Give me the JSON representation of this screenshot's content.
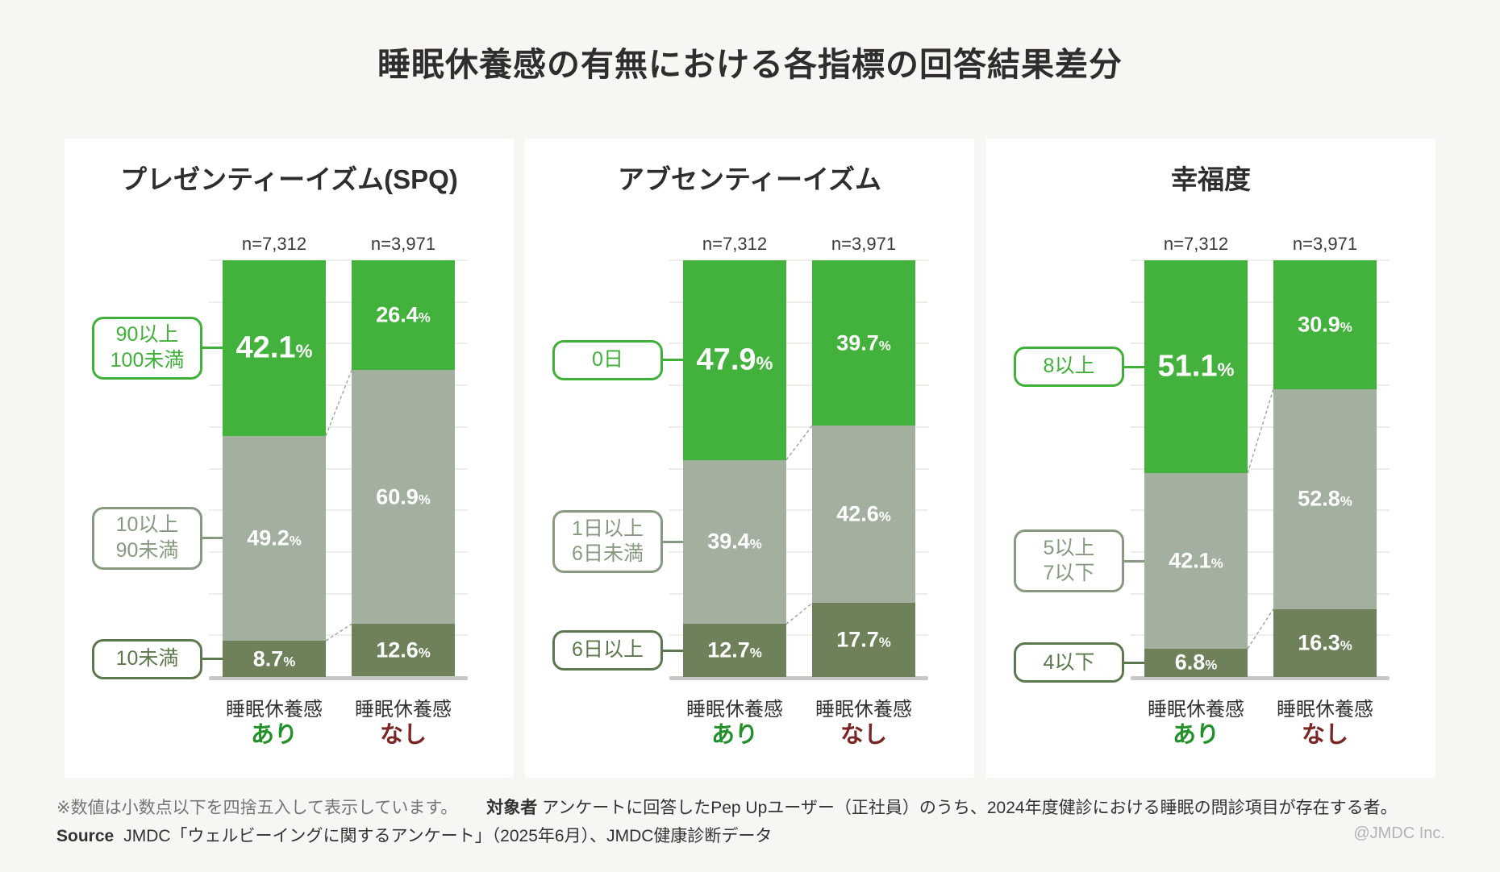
{
  "page": {
    "title": "睡眠休養感の有無における各指標の回答結果差分",
    "note": "※数値は小数点以下を四捨五入して表示しています。",
    "audience_label": "対象者",
    "audience_text": "アンケートに回答したPep Upユーザー（正社員）のうち、2024年度健診における睡眠の問診項目が存在する者。",
    "source_label": "Source",
    "source_text": "JMDC「ウェルビーイングに関するアンケート」（2025年6月）、JMDC健康診断データ",
    "copyright": "@JMDC Inc."
  },
  "colors": {
    "bar_green": "#43b23c",
    "bar_gray": "#a3b0a0",
    "bar_dark": "#6e815a",
    "box_green": "#3fb038",
    "box_gray": "#879980",
    "box_dark": "#5d774e",
    "group_ari": "#22912a",
    "group_nashi": "#7a2626",
    "gridline": "#ededea",
    "baseline": "#c8c8c8",
    "dash_link": "#9aa49a"
  },
  "chart_data": [
    {
      "type": "bar",
      "stacked": true,
      "title": "プレゼンティーイズム(SPQ)",
      "ylim": [
        0,
        100
      ],
      "unit": "%",
      "grid": true,
      "legend_position": "left-callout-boxes",
      "segments": [
        {
          "label": "90以上\n100未満",
          "color": "green"
        },
        {
          "label": "10以上\n90未満",
          "color": "gray"
        },
        {
          "label": "10未満",
          "color": "dark"
        }
      ],
      "bars": [
        {
          "n": "n=7,312",
          "axis_label": "睡眠休養感",
          "group": "あり",
          "group_color": "ari",
          "values": [
            42.1,
            49.2,
            8.7
          ]
        },
        {
          "n": "n=3,971",
          "axis_label": "睡眠休養感",
          "group": "なし",
          "group_color": "nashi",
          "values": [
            26.4,
            60.9,
            12.6
          ]
        }
      ]
    },
    {
      "type": "bar",
      "stacked": true,
      "title": "アブセンティーイズム",
      "ylim": [
        0,
        100
      ],
      "unit": "%",
      "grid": true,
      "legend_position": "left-callout-boxes",
      "segments": [
        {
          "label": "0日",
          "color": "green"
        },
        {
          "label": "1日以上\n6日未満",
          "color": "gray"
        },
        {
          "label": "6日以上",
          "color": "dark"
        }
      ],
      "bars": [
        {
          "n": "n=7,312",
          "axis_label": "睡眠休養感",
          "group": "あり",
          "group_color": "ari",
          "values": [
            47.9,
            39.4,
            12.7
          ]
        },
        {
          "n": "n=3,971",
          "axis_label": "睡眠休養感",
          "group": "なし",
          "group_color": "nashi",
          "values": [
            39.7,
            42.6,
            17.7
          ]
        }
      ]
    },
    {
      "type": "bar",
      "stacked": true,
      "title": "幸福度",
      "ylim": [
        0,
        100
      ],
      "unit": "%",
      "grid": true,
      "legend_position": "left-callout-boxes",
      "segments": [
        {
          "label": "8以上",
          "color": "green"
        },
        {
          "label": "5以上\n7以下",
          "color": "gray"
        },
        {
          "label": "4以下",
          "color": "dark"
        }
      ],
      "bars": [
        {
          "n": "n=7,312",
          "axis_label": "睡眠休養感",
          "group": "あり",
          "group_color": "ari",
          "values": [
            51.1,
            42.1,
            6.8
          ]
        },
        {
          "n": "n=3,971",
          "axis_label": "睡眠休養感",
          "group": "なし",
          "group_color": "nashi",
          "values": [
            30.9,
            52.8,
            16.3
          ]
        }
      ]
    }
  ]
}
